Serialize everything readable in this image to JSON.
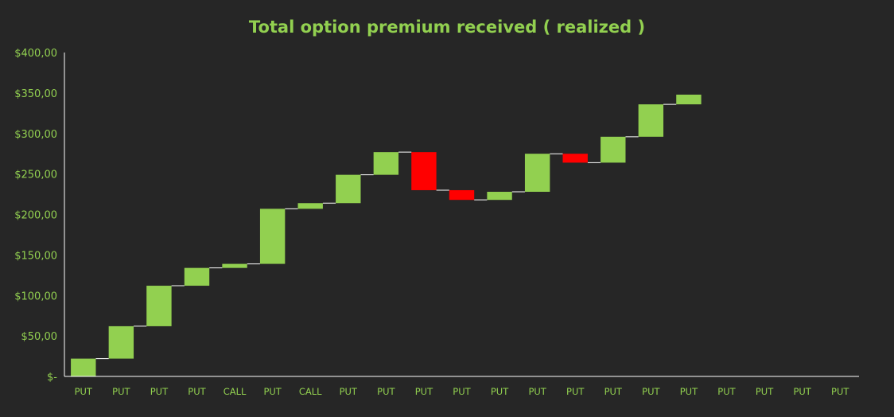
{
  "chart_data": {
    "type": "waterfall",
    "title": "Total option premium received ( realized )",
    "xlabel": "",
    "ylabel": "",
    "ylim": [
      0,
      400
    ],
    "ytick_values": [
      0,
      50,
      100,
      150,
      200,
      250,
      300,
      350,
      400
    ],
    "ytick_labels": [
      "$-",
      "$50,00",
      "$100,00",
      "$150,00",
      "$200,00",
      "$250,00",
      "$300,00",
      "$350,00",
      "$400,00"
    ],
    "categories": [
      "PUT",
      "PUT",
      "PUT",
      "PUT",
      "CALL",
      "PUT",
      "CALL",
      "PUT",
      "PUT",
      "PUT",
      "PUT",
      "PUT",
      "PUT",
      "PUT",
      "PUT",
      "PUT",
      "PUT",
      "PUT",
      "PUT",
      "PUT",
      "PUT"
    ],
    "changes": [
      22,
      40,
      50,
      22,
      5,
      68,
      7,
      35,
      28,
      -47,
      -12,
      10,
      47,
      -11,
      32,
      40,
      12,
      0,
      0,
      0,
      0
    ],
    "grid": false,
    "legend": "none",
    "colors": {
      "background": "#262626",
      "increase": "#92D050",
      "decrease": "#FF0000",
      "connector": "#FFFFFF",
      "axis": "#FFFFFF",
      "text": "#92D050",
      "title": "#92D050"
    }
  }
}
